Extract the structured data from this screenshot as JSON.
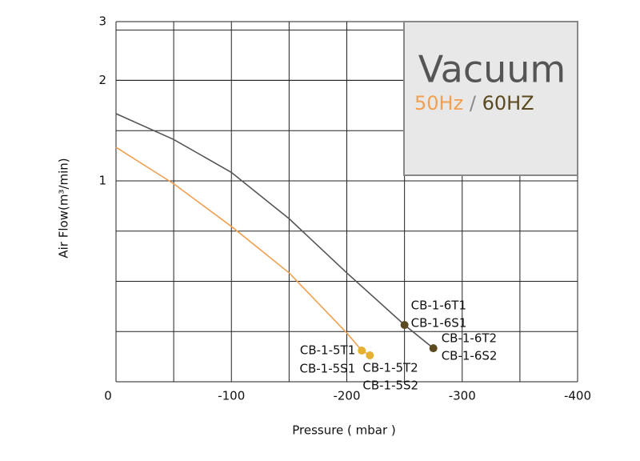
{
  "chart_data": {
    "type": "line",
    "xlabel": "Pressure ( mbar )",
    "ylabel": "Air Flow(m³/min)",
    "xlim": [
      0,
      -400
    ],
    "xticks": [
      0,
      -100,
      -200,
      -300,
      -400
    ],
    "ylim": [
      0.25,
      3
    ],
    "yticks": [
      1,
      2,
      3
    ],
    "yscale": "log",
    "grid": true,
    "legend_title": "Vacuum",
    "legend_separator": "/",
    "series": [
      {
        "name": "50Hz",
        "color": "#f0a050",
        "marker_color": "#e6b030",
        "x": [
          0,
          -50,
          -100,
          -150,
          -200,
          -213,
          -220
        ],
        "values": [
          1.26,
          0.98,
          0.73,
          0.53,
          0.35,
          0.31,
          0.3
        ]
      },
      {
        "name": "60HZ",
        "color": "#555555",
        "marker_color": "#5a4a1e",
        "x": [
          0,
          -50,
          -100,
          -150,
          -200,
          -250,
          -275
        ],
        "values": [
          1.59,
          1.33,
          1.06,
          0.77,
          0.53,
          0.37,
          0.315
        ]
      }
    ],
    "annotations": [
      {
        "series": 1,
        "point": 5,
        "labels": [
          "CB-1-6T1",
          "CB-1-6S1"
        ]
      },
      {
        "series": 1,
        "point": 6,
        "labels": [
          "CB-1-6T2",
          "CB-1-6S2"
        ]
      },
      {
        "series": 0,
        "point": 5,
        "labels": [
          "CB-1-5T1",
          "CB-1-5S1"
        ]
      },
      {
        "series": 0,
        "point": 6,
        "labels": [
          "CB-1-5T2",
          "CB-1-5S2"
        ]
      }
    ]
  }
}
